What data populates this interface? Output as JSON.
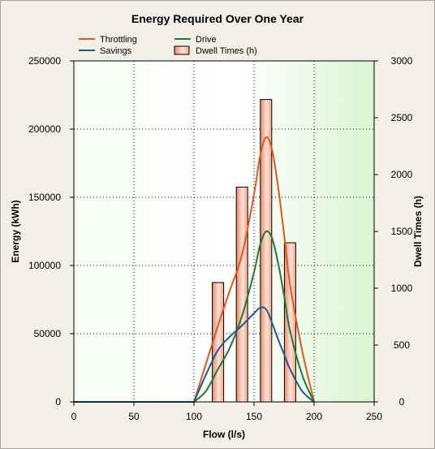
{
  "chart_data": {
    "type": "line",
    "title": "Energy Required Over One Year",
    "xlabel": "Flow (l/s)",
    "ylabel": "Energy (kWh)",
    "y2label": "Dwell Times (h)",
    "xlim": [
      0,
      250
    ],
    "ylim": [
      0,
      250000
    ],
    "y2lim": [
      0,
      3000
    ],
    "xticks": [
      "0",
      "50",
      "100",
      "150",
      "200",
      "250"
    ],
    "yticks": [
      "0",
      "50000",
      "100000",
      "150000",
      "200000",
      "250000"
    ],
    "y2ticks": [
      "0",
      "500",
      "1000",
      "1500",
      "2000",
      "2500",
      "3000"
    ],
    "grid": true,
    "legend_position": "top",
    "series": [
      {
        "name": "Throttling",
        "color": "#e8541c",
        "axis": "left",
        "x": [
          100,
          110,
          120,
          130,
          140,
          150,
          155,
          160,
          165,
          170,
          175,
          180,
          190,
          200
        ],
        "y": [
          0,
          28000,
          56000,
          82000,
          108000,
          152000,
          180000,
          194000,
          185000,
          158000,
          123000,
          86000,
          38000,
          0
        ]
      },
      {
        "name": "Drive",
        "color": "#1e7a32",
        "axis": "left",
        "x": [
          100,
          110,
          120,
          130,
          140,
          150,
          155,
          160,
          165,
          170,
          175,
          180,
          190,
          200
        ],
        "y": [
          0,
          8000,
          24000,
          40000,
          63000,
          95000,
          115000,
          125000,
          120000,
          102000,
          78000,
          52000,
          20000,
          0
        ]
      },
      {
        "name": "Savings",
        "color": "#1d5a8c",
        "axis": "left",
        "x": [
          100,
          110,
          120,
          130,
          140,
          150,
          155,
          160,
          165,
          170,
          175,
          180,
          190,
          200
        ],
        "y": [
          0,
          20000,
          38000,
          48000,
          56000,
          65000,
          69000,
          68000,
          58000,
          46000,
          35000,
          24000,
          8000,
          0
        ]
      },
      {
        "name": "Dwell Times (h)",
        "color": "#f2a98b",
        "axis": "right",
        "type": "bar",
        "x": [
          120,
          140,
          160,
          180
        ],
        "y": [
          1050,
          1890,
          2660,
          1400
        ]
      }
    ]
  }
}
